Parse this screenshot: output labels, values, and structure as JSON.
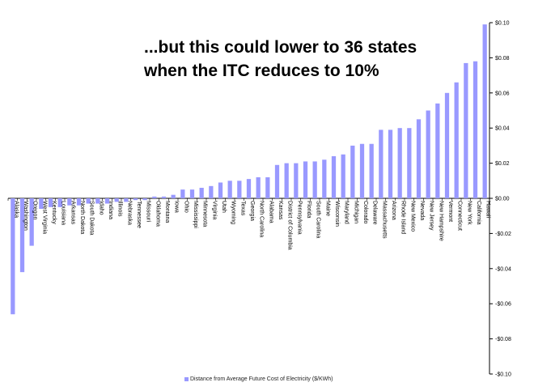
{
  "headline": {
    "line1": "...but this could lower to 36 states",
    "line2": "when the ITC reduces to 10%"
  },
  "chart_data": {
    "type": "bar",
    "categories": [
      "Alaska",
      "Washington",
      "Oregon",
      "West Virginia",
      "Kentucky",
      "Louisiana",
      "Arkansas",
      "North Dakota",
      "South Dakota",
      "Idaho",
      "Indiana",
      "Illinois",
      "Nebraska",
      "Tennessee",
      "Missouri",
      "Oklahoma",
      "Montana",
      "Iowa",
      "Ohio",
      "Mississippi",
      "Minnesota",
      "Virginia",
      "Utah",
      "Wyoming",
      "Texas",
      "Georgia",
      "North Carolina",
      "Alabama",
      "Kansas",
      "District of Columbia",
      "Pennsylvania",
      "Florida",
      "South Carolina",
      "Maine",
      "Wisconsin",
      "Maryland",
      "Michigan",
      "Colorado",
      "Delaware",
      "Massachusetts",
      "Arizona",
      "Rhode Island",
      "New Mexico",
      "Nevada",
      "New Jersey",
      "New Hampshire",
      "Vermont",
      "Connecticut",
      "New York",
      "California",
      "Hawaii"
    ],
    "series": [
      {
        "name": "Distance from Average Future Cost of Electricity  ($/KWh)",
        "values": [
          -0.066,
          -0.042,
          -0.027,
          -0.006,
          -0.005,
          -0.005,
          -0.004,
          -0.004,
          -0.003,
          -0.003,
          -0.003,
          -0.002,
          -0.002,
          -0.001,
          -0.001,
          0.001,
          0.001,
          0.002,
          0.005,
          0.005,
          0.006,
          0.007,
          0.009,
          0.01,
          0.01,
          0.011,
          0.012,
          0.012,
          0.019,
          0.02,
          0.02,
          0.021,
          0.021,
          0.022,
          0.024,
          0.025,
          0.03,
          0.031,
          0.031,
          0.039,
          0.039,
          0.04,
          0.04,
          0.045,
          0.05,
          0.054,
          0.06,
          0.066,
          0.077,
          0.078,
          0.099
        ]
      }
    ],
    "ylim": [
      -0.1,
      0.1
    ],
    "yticks": [
      "$0.10",
      "$0.08",
      "$0.06",
      "$0.04",
      "$0.02",
      "$0.00",
      "-$0.02",
      "-$0.04",
      "-$0.06",
      "-$0.08",
      "-$0.10"
    ],
    "ytick_values": [
      0.1,
      0.08,
      0.06,
      0.04,
      0.02,
      0.0,
      -0.02,
      -0.04,
      -0.06,
      -0.08,
      -0.1
    ],
    "yaxis_side": "right",
    "grid": false,
    "legend_position": "bottom",
    "bar_color": "#9999ff",
    "label_color": "#000000"
  }
}
